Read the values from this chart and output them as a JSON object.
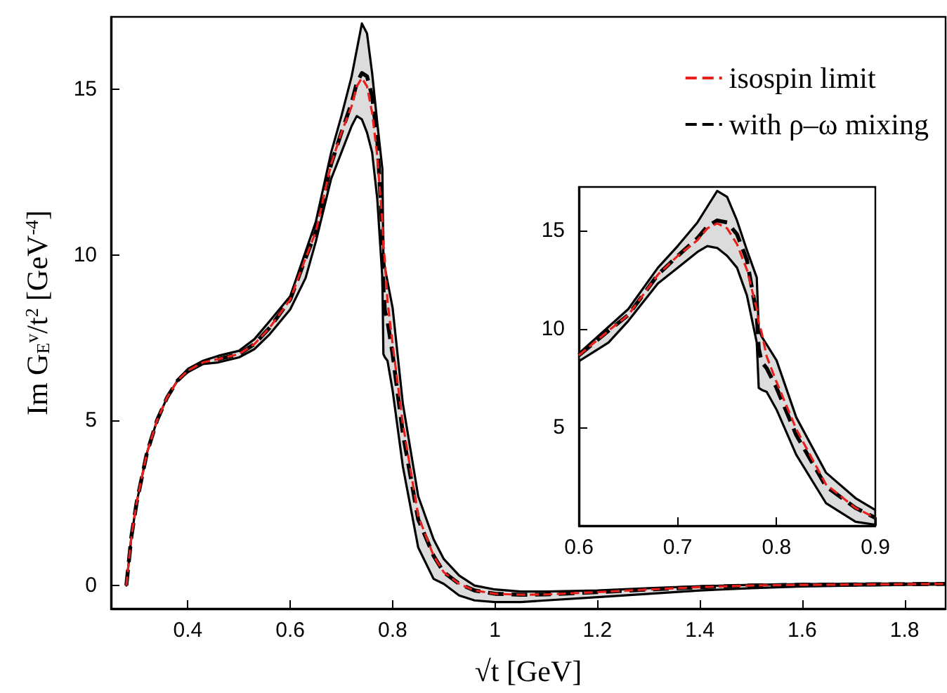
{
  "chart_data": [
    {
      "type": "line",
      "xlabel": "√t [GeV]",
      "ylabel": "Im G$_{E}$$^{v}$/t$^{2}$ [GeV$^{-4}$]",
      "legend": "top right",
      "marker": "none",
      "x": [
        0.28,
        0.29,
        0.3,
        0.32,
        0.34,
        0.36,
        0.38,
        0.4,
        0.43,
        0.46,
        0.5,
        0.53,
        0.56,
        0.6,
        0.63,
        0.65,
        0.68,
        0.7,
        0.72,
        0.73,
        0.74,
        0.75,
        0.76,
        0.77,
        0.78,
        0.782,
        0.785,
        0.79,
        0.8,
        0.82,
        0.85,
        0.88,
        0.9,
        0.93,
        0.96,
        1.0,
        1.05,
        1.1,
        1.2,
        1.3,
        1.4,
        1.5,
        1.6,
        1.7,
        1.8,
        1.88
      ],
      "series": [
        {
          "name": "isospin limit",
          "color": "#e8201c",
          "line_style": "dashed",
          "values": [
            0,
            1.5,
            2.5,
            4.0,
            5.0,
            5.7,
            6.2,
            6.5,
            6.75,
            6.85,
            7.0,
            7.3,
            7.8,
            8.65,
            9.9,
            10.7,
            12.75,
            13.7,
            14.5,
            15.1,
            15.35,
            15.1,
            14.3,
            13.0,
            11.0,
            10.3,
            9.8,
            8.6,
            7.3,
            4.9,
            2.1,
            0.9,
            0.4,
            0.05,
            -0.15,
            -0.25,
            -0.28,
            -0.27,
            -0.2,
            -0.12,
            -0.05,
            0,
            0.02,
            0.03,
            0.04,
            0.05
          ]
        },
        {
          "name": "with ρ–ω mixing",
          "color": "#000000",
          "line_style": "dashed",
          "values": [
            0,
            1.5,
            2.5,
            4.0,
            5.0,
            5.7,
            6.2,
            6.5,
            6.75,
            6.85,
            7.0,
            7.3,
            7.8,
            8.65,
            9.9,
            10.7,
            12.75,
            13.7,
            14.6,
            15.2,
            15.5,
            15.4,
            14.8,
            13.5,
            10.7,
            9.0,
            8.3,
            8.0,
            7.0,
            4.6,
            2.0,
            0.9,
            0.4,
            0.05,
            -0.15,
            -0.25,
            -0.28,
            -0.27,
            -0.2,
            -0.12,
            -0.05,
            0,
            0.02,
            0.03,
            0.04,
            0.05
          ],
          "upper": [
            0,
            1.5,
            2.5,
            4.0,
            5.0,
            5.7,
            6.2,
            6.55,
            6.8,
            6.95,
            7.1,
            7.45,
            8.0,
            8.75,
            10.1,
            11.0,
            13.1,
            14.2,
            15.4,
            16.2,
            17.0,
            16.7,
            15.5,
            14.0,
            12.6,
            10.0,
            9.6,
            9.2,
            8.4,
            5.5,
            2.7,
            1.4,
            0.8,
            0.3,
            0.0,
            -0.12,
            -0.18,
            -0.18,
            -0.15,
            -0.08,
            -0.02,
            0.02,
            0.04,
            0.05,
            0.06,
            0.07
          ],
          "lower": [
            0,
            1.5,
            2.5,
            4.0,
            5.0,
            5.7,
            6.2,
            6.45,
            6.7,
            6.75,
            6.9,
            7.15,
            7.6,
            8.35,
            9.3,
            10.4,
            12.3,
            13.1,
            13.9,
            14.2,
            14.1,
            13.7,
            13.1,
            11.7,
            9.3,
            7.0,
            6.9,
            6.8,
            5.9,
            3.6,
            1.15,
            0.2,
            0.05,
            -0.3,
            -0.45,
            -0.5,
            -0.5,
            -0.45,
            -0.35,
            -0.25,
            -0.15,
            -0.08,
            -0.03,
            0.0,
            0.02,
            0.03
          ]
        }
      ],
      "xlim": [
        0.25,
        1.88
      ],
      "xticks": [
        0.4,
        0.6,
        0.8,
        1,
        1.2,
        1.4,
        1.6,
        1.8
      ],
      "ylim": [
        -0.7,
        17.2
      ],
      "yticks": [
        0,
        5,
        10,
        15
      ]
    },
    {
      "type": "line",
      "marker": "none",
      "x": [
        0.6,
        0.63,
        0.65,
        0.68,
        0.7,
        0.72,
        0.73,
        0.74,
        0.75,
        0.76,
        0.77,
        0.78,
        0.782,
        0.785,
        0.79,
        0.8,
        0.82,
        0.85,
        0.88,
        0.9
      ],
      "series": [
        {
          "color": "#e8201c",
          "line_style": "dashed",
          "values": [
            8.65,
            9.9,
            10.7,
            12.75,
            13.7,
            14.5,
            15.1,
            15.35,
            15.1,
            14.3,
            13.0,
            11.0,
            10.3,
            9.8,
            8.6,
            7.3,
            4.9,
            2.1,
            0.9,
            0.4
          ]
        },
        {
          "color": "#000000",
          "line_style": "dashed",
          "values": [
            8.65,
            9.9,
            10.7,
            12.75,
            13.7,
            14.6,
            15.2,
            15.5,
            15.4,
            14.8,
            13.5,
            10.7,
            9.0,
            8.3,
            8.0,
            7.0,
            4.6,
            2.0,
            0.9,
            0.4
          ],
          "upper": [
            8.75,
            10.1,
            11.0,
            13.1,
            14.2,
            15.4,
            16.2,
            17.0,
            16.7,
            15.5,
            14.0,
            12.6,
            10.0,
            9.6,
            9.2,
            8.4,
            5.5,
            2.7,
            1.4,
            0.8
          ],
          "lower": [
            8.35,
            9.3,
            10.4,
            12.3,
            13.1,
            13.9,
            14.2,
            14.1,
            13.7,
            13.1,
            11.7,
            9.3,
            7.0,
            6.9,
            6.8,
            5.9,
            3.6,
            1.15,
            0.2,
            0.05
          ]
        }
      ],
      "xlim": [
        0.6,
        0.9
      ],
      "xticks": [
        0.6,
        0.7,
        0.8,
        0.9
      ],
      "ylim": [
        0,
        17.2
      ],
      "yticks": [
        5,
        10,
        15
      ]
    }
  ]
}
